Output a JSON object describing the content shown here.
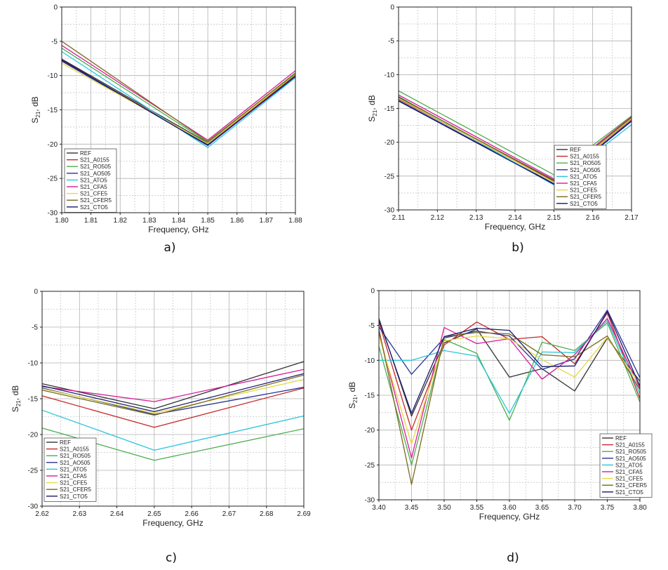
{
  "chart_data": [
    {
      "type": "line",
      "panel_label": "a)",
      "xlabel": "Frequency, GHz",
      "ylabel_main": "S",
      "ylabel_sub": "21",
      "ylabel_tail": ", dB",
      "x_ticks": [
        "1.80",
        "1.81",
        "1.82",
        "1.83",
        "1.84",
        "1.85",
        "1.86",
        "1.87",
        "1.88"
      ],
      "y_ticks": [
        "0",
        "-5",
        "-10",
        "-15",
        "-20",
        "-25",
        "-30"
      ],
      "xlim": [
        1.8,
        1.88
      ],
      "ylim": [
        -30,
        0
      ],
      "grid": true,
      "legend_position": "bottom-left",
      "x": [
        1.8,
        1.85,
        1.88
      ],
      "series": [
        {
          "name": "REF",
          "color": "#333333",
          "values": [
            -7.6,
            -19.8,
            -9.9
          ]
        },
        {
          "name": "S21_A0155",
          "color": "#c62828",
          "values": [
            -7.8,
            -20.0,
            -10.0
          ]
        },
        {
          "name": "S21_RO505",
          "color": "#4caf50",
          "values": [
            -6.0,
            -19.7,
            -9.6
          ]
        },
        {
          "name": "S21_AO505",
          "color": "#283593",
          "values": [
            -7.9,
            -20.1,
            -10.2
          ]
        },
        {
          "name": "S21_ATO5",
          "color": "#26c6da",
          "values": [
            -6.5,
            -20.5,
            -10.3
          ]
        },
        {
          "name": "S21_CFA5",
          "color": "#d81b9a",
          "values": [
            -5.6,
            -19.4,
            -9.3
          ]
        },
        {
          "name": "S21_CFE5",
          "color": "#e5d84a",
          "values": [
            -8.2,
            -19.9,
            -9.8
          ]
        },
        {
          "name": "S21_CFER5",
          "color": "#7a6a1e",
          "values": [
            -5.0,
            -19.6,
            -9.7
          ]
        },
        {
          "name": "S21_CTO5",
          "color": "#1a1a6e",
          "values": [
            -7.7,
            -20.2,
            -10.1
          ]
        }
      ]
    },
    {
      "type": "line",
      "panel_label": "b)",
      "xlabel": "Frequency, GHz",
      "ylabel_main": "S",
      "ylabel_sub": "21",
      "ylabel_tail": ", dB",
      "x_ticks": [
        "2.11",
        "2.12",
        "2.13",
        "2.14",
        "2.15",
        "2.16",
        "2.17"
      ],
      "y_ticks": [
        "0",
        "-5",
        "-10",
        "-15",
        "-20",
        "-25",
        "-30"
      ],
      "xlim": [
        2.11,
        2.17
      ],
      "ylim": [
        -30,
        0
      ],
      "grid": true,
      "legend_position": "bottom-right",
      "x": [
        2.11,
        2.15,
        2.17
      ],
      "series": [
        {
          "name": "REF",
          "color": "#333333",
          "values": [
            -13.4,
            -25.6,
            -16.4
          ]
        },
        {
          "name": "S21_A0155",
          "color": "#c62828",
          "values": [
            -13.6,
            -25.8,
            -16.6
          ]
        },
        {
          "name": "S21_RO505",
          "color": "#4caf50",
          "values": [
            -12.4,
            -24.8,
            -16.1
          ]
        },
        {
          "name": "S21_AO505",
          "color": "#283593",
          "values": [
            -13.8,
            -26.1,
            -16.8
          ]
        },
        {
          "name": "S21_ATO5",
          "color": "#26c6da",
          "values": [
            -13.2,
            -26.3,
            -17.4
          ]
        },
        {
          "name": "S21_CFA5",
          "color": "#d81b9a",
          "values": [
            -13.0,
            -25.4,
            -16.2
          ]
        },
        {
          "name": "S21_CFE5",
          "color": "#e5d84a",
          "values": [
            -13.5,
            -25.9,
            -16.5
          ]
        },
        {
          "name": "S21_CFER5",
          "color": "#7a6a1e",
          "values": [
            -13.3,
            -25.7,
            -16.3
          ]
        },
        {
          "name": "S21_CTO5",
          "color": "#1a1a6e",
          "values": [
            -13.9,
            -26.2,
            -16.9
          ]
        }
      ]
    },
    {
      "type": "line",
      "panel_label": "c)",
      "xlabel": "Frequency, GHz",
      "ylabel_main": "S",
      "ylabel_sub": "21",
      "ylabel_tail": ", dB",
      "x_ticks": [
        "2.62",
        "2.63",
        "2.64",
        "2.65",
        "2.66",
        "2.67",
        "2.68",
        "2.69"
      ],
      "y_ticks": [
        "0",
        "-5",
        "-10",
        "-15",
        "-20",
        "-25",
        "-30"
      ],
      "xlim": [
        2.62,
        2.69
      ],
      "ylim": [
        -30,
        0
      ],
      "grid": true,
      "legend_position": "bottom-left",
      "x": [
        2.62,
        2.65,
        2.69
      ],
      "series": [
        {
          "name": "REF",
          "color": "#333333",
          "values": [
            -12.9,
            -16.4,
            -9.8
          ]
        },
        {
          "name": "S21_A0155",
          "color": "#c62828",
          "values": [
            -14.6,
            -19.0,
            -13.5
          ]
        },
        {
          "name": "S21_RO505",
          "color": "#4caf50",
          "values": [
            -19.1,
            -23.6,
            -19.2
          ]
        },
        {
          "name": "S21_AO505",
          "color": "#283593",
          "values": [
            -13.5,
            -17.2,
            -13.4
          ]
        },
        {
          "name": "S21_ATO5",
          "color": "#26c6da",
          "values": [
            -16.6,
            -22.2,
            -17.4
          ]
        },
        {
          "name": "S21_CFA5",
          "color": "#d81b9a",
          "values": [
            -13.3,
            -15.4,
            -10.9
          ]
        },
        {
          "name": "S21_CFE5",
          "color": "#e5d84a",
          "values": [
            -13.6,
            -17.0,
            -12.3
          ]
        },
        {
          "name": "S21_CFER5",
          "color": "#7a6a1e",
          "values": [
            -13.8,
            -17.3,
            -11.7
          ]
        },
        {
          "name": "S21_CTO5",
          "color": "#1a1a6e",
          "values": [
            -13.2,
            -16.8,
            -11.5
          ]
        }
      ]
    },
    {
      "type": "line",
      "panel_label": "d)",
      "xlabel": "Frequency, GHz",
      "ylabel_main": "S",
      "ylabel_sub": "21",
      "ylabel_tail": ", dB",
      "x_ticks": [
        "3.40",
        "3.45",
        "3.50",
        "3.55",
        "3.60",
        "3.65",
        "3.70",
        "3.75",
        "3.80"
      ],
      "y_ticks": [
        "0",
        "-5",
        "-10",
        "-15",
        "-20",
        "-25",
        "-30"
      ],
      "xlim": [
        3.4,
        3.8
      ],
      "ylim": [
        -30,
        0
      ],
      "grid": true,
      "legend_position": "bottom-right",
      "x": [
        3.4,
        3.45,
        3.5,
        3.55,
        3.6,
        3.65,
        3.7,
        3.75,
        3.8
      ],
      "series": [
        {
          "name": "REF",
          "color": "#333333",
          "values": [
            -4.0,
            -18.0,
            -7.5,
            -5.5,
            -12.4,
            -11.2,
            -14.4,
            -6.8,
            -13.0
          ]
        },
        {
          "name": "S21_A0155",
          "color": "#c62828",
          "values": [
            -4.5,
            -20.0,
            -7.8,
            -4.5,
            -7.0,
            -6.6,
            -10.5,
            -3.2,
            -15.5
          ]
        },
        {
          "name": "S21_RO505",
          "color": "#4caf50",
          "values": [
            -8.0,
            -25.0,
            -7.0,
            -9.0,
            -18.6,
            -7.4,
            -8.6,
            -4.6,
            -16.0
          ]
        },
        {
          "name": "S21_AO505",
          "color": "#283593",
          "values": [
            -5.2,
            -12.0,
            -6.8,
            -5.8,
            -6.5,
            -11.3,
            -9.8,
            -2.8,
            -12.5
          ]
        },
        {
          "name": "S21_ATO5",
          "color": "#26c6da",
          "values": [
            -10.0,
            -10.0,
            -8.6,
            -9.4,
            -17.6,
            -8.8,
            -8.9,
            -4.3,
            -14.8
          ]
        },
        {
          "name": "S21_CFA5",
          "color": "#d81b9a",
          "values": [
            -6.0,
            -24.0,
            -5.3,
            -7.6,
            -6.9,
            -12.7,
            -9.2,
            -4.0,
            -14.0
          ]
        },
        {
          "name": "S21_CFE5",
          "color": "#e5d84a",
          "values": [
            -6.5,
            -22.0,
            -7.2,
            -6.5,
            -6.9,
            -9.9,
            -12.4,
            -6.7,
            -13.5
          ]
        },
        {
          "name": "S21_CFER5",
          "color": "#7a6a1e",
          "values": [
            -5.5,
            -27.8,
            -6.6,
            -6.0,
            -6.2,
            -9.2,
            -9.5,
            -6.5,
            -14.2
          ]
        },
        {
          "name": "S21_CTO5",
          "color": "#1a1a6e",
          "values": [
            -4.2,
            -17.6,
            -6.6,
            -5.4,
            -5.7,
            -10.9,
            -10.8,
            -3.0,
            -13.7
          ]
        }
      ]
    }
  ]
}
